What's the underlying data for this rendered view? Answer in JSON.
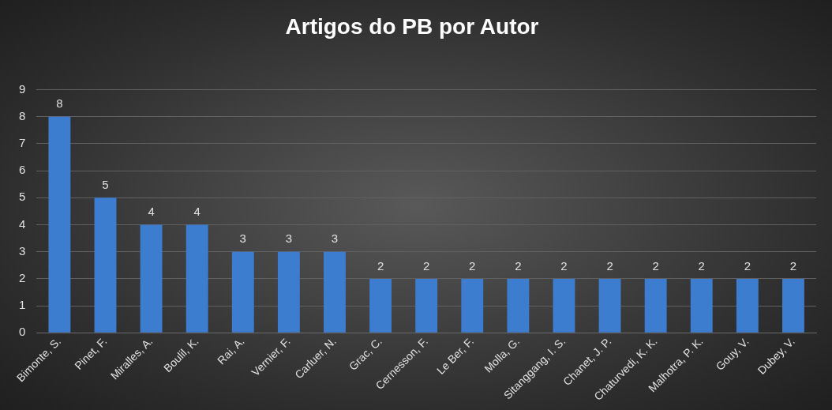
{
  "chart_data": {
    "type": "bar",
    "title": "Artigos do PB por Autor",
    "categories": [
      "Bimonte, S.",
      "Pinet, F.",
      "Miralles, A.",
      "Boulil, K.",
      "Rai, A.",
      "Vernier, F.",
      "Carluer, N.",
      "Grac, C.",
      "Cernesson, F.",
      "Le Ber, F.",
      "Molla, G.",
      "Sitanggang, I. S.",
      "Chanet, J. P.",
      "Chaturvedi, K. K.",
      "Malhotra, P. K.",
      "Gouy, V.",
      "Dubey, V."
    ],
    "values": [
      8,
      5,
      4,
      4,
      3,
      3,
      3,
      2,
      2,
      2,
      2,
      2,
      2,
      2,
      2,
      2,
      2
    ],
    "color": "#3c7dd0",
    "ylim": [
      0,
      9
    ],
    "yticks": [
      0,
      1,
      2,
      3,
      4,
      5,
      6,
      7,
      8,
      9
    ],
    "grid": "y",
    "data_labels": true
  }
}
